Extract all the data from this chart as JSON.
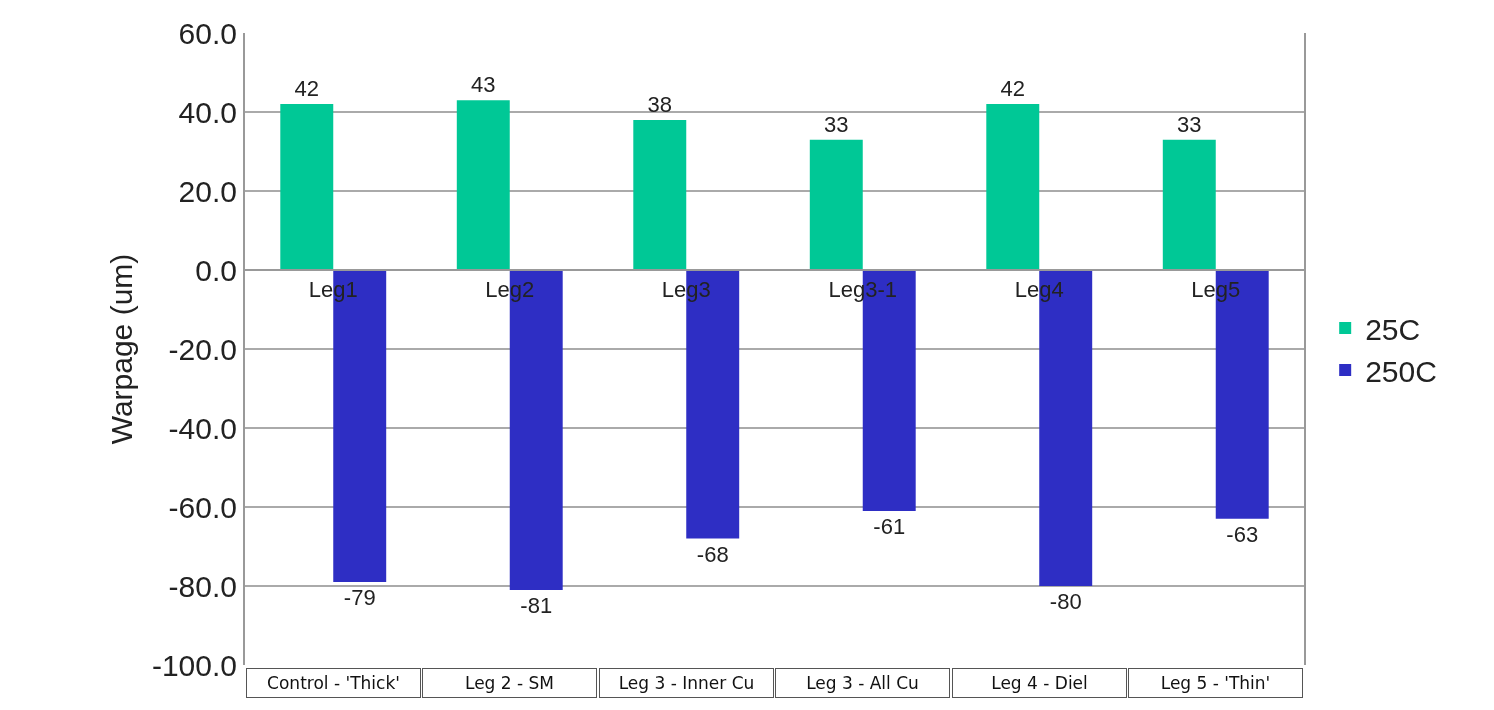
{
  "chart_data": {
    "type": "bar",
    "ylabel": "Warpage (um)",
    "categories": [
      "Leg1",
      "Leg2",
      "Leg3",
      "Leg3-1",
      "Leg4",
      "Leg5"
    ],
    "series": [
      {
        "name": "25C",
        "color": "#00c896",
        "values": [
          42,
          43,
          38,
          33,
          42,
          33
        ]
      },
      {
        "name": "250C",
        "color": "#2e2ec4",
        "values": [
          -79,
          -81,
          -68,
          -61,
          -80,
          -63
        ]
      }
    ],
    "ylim": [
      -100,
      60
    ],
    "yticks": [
      {
        "value": -100,
        "label": "-100.0"
      },
      {
        "value": -80,
        "label": "-80.0"
      },
      {
        "value": -60,
        "label": "-60.0"
      },
      {
        "value": -40,
        "label": "-40.0"
      },
      {
        "value": -20,
        "label": "-20.0"
      },
      {
        "value": 0,
        "label": "0.0"
      },
      {
        "value": 20,
        "label": "20.0"
      },
      {
        "value": 40,
        "label": "40.0"
      },
      {
        "value": 60,
        "label": "60.0"
      }
    ],
    "grid": "y",
    "legend": "right",
    "data_labels": true,
    "annotations": [
      "Control - 'Thick'",
      "Leg 2 - SM",
      "Leg 3 - Inner Cu",
      "Leg 3 - All Cu",
      "Leg 4 - Diel",
      "Leg 5 - 'Thin'"
    ]
  }
}
